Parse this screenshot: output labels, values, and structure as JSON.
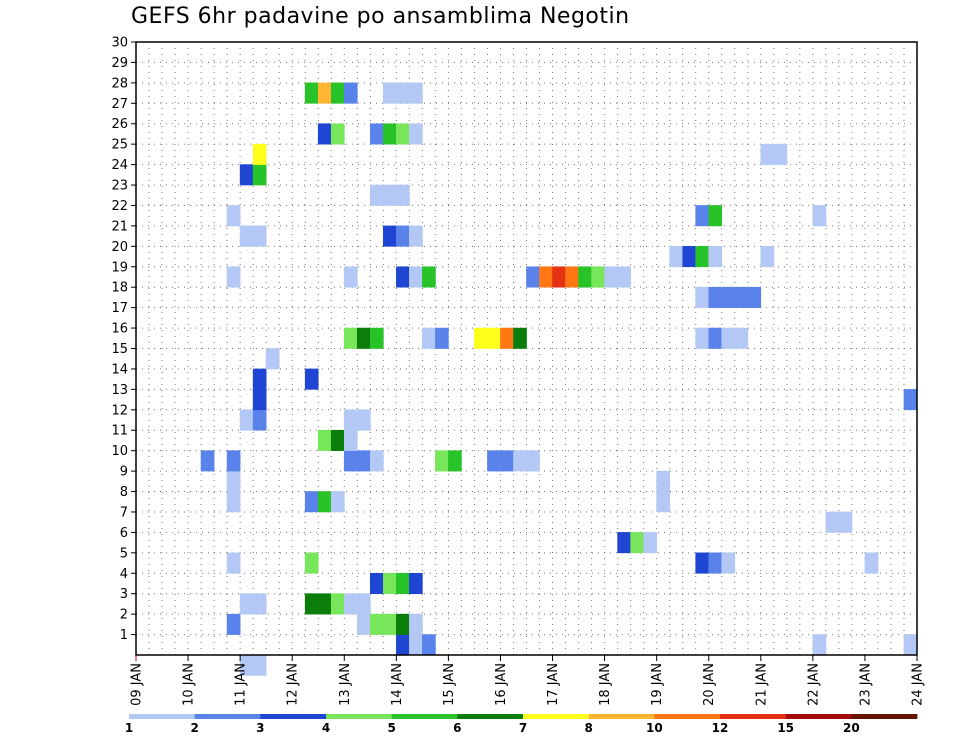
{
  "chart_data": {
    "type": "heatmap",
    "title": "GEFS 6hr padavine po ansamblima Negotin",
    "xlabel": "",
    "ylabel": "",
    "x_tick_labels": [
      "09 JAN",
      "10 JAN",
      "11 JAN",
      "12 JAN",
      "13 JAN",
      "14 JAN",
      "15 JAN",
      "16 JAN",
      "17 JAN",
      "18 JAN",
      "19 JAN",
      "20 JAN",
      "21 JAN",
      "22 JAN",
      "23 JAN",
      "24 JAN"
    ],
    "x_unit": "6-hour step from 09 JAN 00Z",
    "xlim": [
      0,
      60
    ],
    "y_tick_labels": [
      "1",
      "2",
      "3",
      "4",
      "5",
      "6",
      "7",
      "8",
      "9",
      "10",
      "11",
      "12",
      "13",
      "14",
      "15",
      "16",
      "17",
      "18",
      "19",
      "20",
      "21",
      "22",
      "23",
      "24",
      "25",
      "26",
      "27",
      "28",
      "29",
      "30"
    ],
    "ylim": [
      0,
      30
    ],
    "grid": true,
    "colorbar": {
      "levels": [
        "1",
        "2",
        "3",
        "4",
        "5",
        "6",
        "7",
        "8",
        "10",
        "12",
        "15",
        "20"
      ],
      "colors": [
        "#b4c8f5",
        "#5a82eb",
        "#1e46d2",
        "#78e65a",
        "#28c328",
        "#0a7d0a",
        "#ffff1e",
        "#ffb432",
        "#ff7814",
        "#e63214",
        "#a50a0a",
        "#641400"
      ]
    },
    "cells": [
      {
        "t": 8,
        "m": 0,
        "c": 0
      },
      {
        "t": 9,
        "m": 0,
        "c": 0
      },
      {
        "t": 20,
        "m": 1,
        "c": 2
      },
      {
        "t": 21,
        "m": 1,
        "c": 0
      },
      {
        "t": 22,
        "m": 1,
        "c": 1
      },
      {
        "t": 52,
        "m": 1,
        "c": 0
      },
      {
        "t": 59,
        "m": 1,
        "c": 0
      },
      {
        "t": 7,
        "m": 2,
        "c": 1
      },
      {
        "t": 17,
        "m": 2,
        "c": 0
      },
      {
        "t": 18,
        "m": 2,
        "c": 3
      },
      {
        "t": 19,
        "m": 2,
        "c": 3
      },
      {
        "t": 20,
        "m": 2,
        "c": 5
      },
      {
        "t": 21,
        "m": 2,
        "c": 0
      },
      {
        "t": 8,
        "m": 3,
        "c": 0
      },
      {
        "t": 9,
        "m": 3,
        "c": 0
      },
      {
        "t": 13,
        "m": 3,
        "c": 5
      },
      {
        "t": 14,
        "m": 3,
        "c": 5
      },
      {
        "t": 15,
        "m": 3,
        "c": 3
      },
      {
        "t": 16,
        "m": 3,
        "c": 0
      },
      {
        "t": 17,
        "m": 3,
        "c": 0
      },
      {
        "t": 18,
        "m": 4,
        "c": 2
      },
      {
        "t": 19,
        "m": 4,
        "c": 3
      },
      {
        "t": 20,
        "m": 4,
        "c": 4
      },
      {
        "t": 21,
        "m": 4,
        "c": 2
      },
      {
        "t": 7,
        "m": 5,
        "c": 0
      },
      {
        "t": 13,
        "m": 5,
        "c": 3
      },
      {
        "t": 43,
        "m": 5,
        "c": 2
      },
      {
        "t": 44,
        "m": 5,
        "c": 1
      },
      {
        "t": 45,
        "m": 5,
        "c": 0
      },
      {
        "t": 56,
        "m": 5,
        "c": 0
      },
      {
        "t": 37,
        "m": 6,
        "c": 2
      },
      {
        "t": 38,
        "m": 6,
        "c": 3
      },
      {
        "t": 39,
        "m": 6,
        "c": 0
      },
      {
        "t": 53,
        "m": 7,
        "c": 0
      },
      {
        "t": 54,
        "m": 7,
        "c": 0
      },
      {
        "t": 7,
        "m": 8,
        "c": 0
      },
      {
        "t": 13,
        "m": 8,
        "c": 1
      },
      {
        "t": 14,
        "m": 8,
        "c": 4
      },
      {
        "t": 15,
        "m": 8,
        "c": 0
      },
      {
        "t": 40,
        "m": 8,
        "c": 0
      },
      {
        "t": 7,
        "m": 9,
        "c": 0
      },
      {
        "t": 40,
        "m": 9,
        "c": 0
      },
      {
        "t": 5,
        "m": 10,
        "c": 1
      },
      {
        "t": 7,
        "m": 10,
        "c": 1
      },
      {
        "t": 16,
        "m": 10,
        "c": 1
      },
      {
        "t": 17,
        "m": 10,
        "c": 1
      },
      {
        "t": 18,
        "m": 10,
        "c": 0
      },
      {
        "t": 23,
        "m": 10,
        "c": 3
      },
      {
        "t": 24,
        "m": 10,
        "c": 4
      },
      {
        "t": 27,
        "m": 10,
        "c": 1
      },
      {
        "t": 28,
        "m": 10,
        "c": 1
      },
      {
        "t": 29,
        "m": 10,
        "c": 0
      },
      {
        "t": 30,
        "m": 10,
        "c": 0
      },
      {
        "t": 14,
        "m": 11,
        "c": 3
      },
      {
        "t": 15,
        "m": 11,
        "c": 5
      },
      {
        "t": 16,
        "m": 11,
        "c": 0
      },
      {
        "t": 8,
        "m": 12,
        "c": 0
      },
      {
        "t": 9,
        "m": 12,
        "c": 1
      },
      {
        "t": 16,
        "m": 12,
        "c": 0
      },
      {
        "t": 17,
        "m": 12,
        "c": 0
      },
      {
        "t": 9,
        "m": 13,
        "c": 2
      },
      {
        "t": 59,
        "m": 13,
        "c": 1
      },
      {
        "t": 9,
        "m": 14,
        "c": 2
      },
      {
        "t": 13,
        "m": 14,
        "c": 2
      },
      {
        "t": 10,
        "m": 15,
        "c": 0
      },
      {
        "t": 16,
        "m": 16,
        "c": 3
      },
      {
        "t": 17,
        "m": 16,
        "c": 5
      },
      {
        "t": 18,
        "m": 16,
        "c": 4
      },
      {
        "t": 22,
        "m": 16,
        "c": 0
      },
      {
        "t": 23,
        "m": 16,
        "c": 1
      },
      {
        "t": 26,
        "m": 16,
        "c": 6
      },
      {
        "t": 27,
        "m": 16,
        "c": 6
      },
      {
        "t": 28,
        "m": 16,
        "c": 8
      },
      {
        "t": 29,
        "m": 16,
        "c": 5
      },
      {
        "t": 43,
        "m": 16,
        "c": 0
      },
      {
        "t": 44,
        "m": 16,
        "c": 1
      },
      {
        "t": 45,
        "m": 16,
        "c": 0
      },
      {
        "t": 46,
        "m": 16,
        "c": 0
      },
      {
        "t": 43,
        "m": 18,
        "c": 0
      },
      {
        "t": 44,
        "m": 18,
        "c": 1
      },
      {
        "t": 45,
        "m": 18,
        "c": 1
      },
      {
        "t": 46,
        "m": 18,
        "c": 1
      },
      {
        "t": 47,
        "m": 18,
        "c": 1
      },
      {
        "t": 7,
        "m": 19,
        "c": 0
      },
      {
        "t": 16,
        "m": 19,
        "c": 0
      },
      {
        "t": 20,
        "m": 19,
        "c": 2
      },
      {
        "t": 21,
        "m": 19,
        "c": 0
      },
      {
        "t": 22,
        "m": 19,
        "c": 4
      },
      {
        "t": 30,
        "m": 19,
        "c": 1
      },
      {
        "t": 31,
        "m": 19,
        "c": 8
      },
      {
        "t": 32,
        "m": 19,
        "c": 9
      },
      {
        "t": 33,
        "m": 19,
        "c": 8
      },
      {
        "t": 34,
        "m": 19,
        "c": 4
      },
      {
        "t": 35,
        "m": 19,
        "c": 3
      },
      {
        "t": 36,
        "m": 19,
        "c": 0
      },
      {
        "t": 37,
        "m": 19,
        "c": 0
      },
      {
        "t": 41,
        "m": 20,
        "c": 0
      },
      {
        "t": 42,
        "m": 20,
        "c": 2
      },
      {
        "t": 43,
        "m": 20,
        "c": 4
      },
      {
        "t": 44,
        "m": 20,
        "c": 0
      },
      {
        "t": 48,
        "m": 20,
        "c": 0
      },
      {
        "t": 8,
        "m": 21,
        "c": 0
      },
      {
        "t": 9,
        "m": 21,
        "c": 0
      },
      {
        "t": 19,
        "m": 21,
        "c": 2
      },
      {
        "t": 20,
        "m": 21,
        "c": 1
      },
      {
        "t": 21,
        "m": 21,
        "c": 0
      },
      {
        "t": 7,
        "m": 22,
        "c": 0
      },
      {
        "t": 43,
        "m": 22,
        "c": 1
      },
      {
        "t": 44,
        "m": 22,
        "c": 4
      },
      {
        "t": 52,
        "m": 22,
        "c": 0
      },
      {
        "t": 18,
        "m": 23,
        "c": 0
      },
      {
        "t": 19,
        "m": 23,
        "c": 0
      },
      {
        "t": 20,
        "m": 23,
        "c": 0
      },
      {
        "t": 8,
        "m": 24,
        "c": 2
      },
      {
        "t": 9,
        "m": 24,
        "c": 4
      },
      {
        "t": 9,
        "m": 25,
        "c": 6
      },
      {
        "t": 48,
        "m": 25,
        "c": 0
      },
      {
        "t": 49,
        "m": 25,
        "c": 0
      },
      {
        "t": 14,
        "m": 26,
        "c": 2
      },
      {
        "t": 15,
        "m": 26,
        "c": 3
      },
      {
        "t": 18,
        "m": 26,
        "c": 1
      },
      {
        "t": 19,
        "m": 26,
        "c": 4
      },
      {
        "t": 20,
        "m": 26,
        "c": 3
      },
      {
        "t": 21,
        "m": 26,
        "c": 0
      },
      {
        "t": 13,
        "m": 28,
        "c": 4
      },
      {
        "t": 14,
        "m": 28,
        "c": 7
      },
      {
        "t": 15,
        "m": 28,
        "c": 4
      },
      {
        "t": 16,
        "m": 28,
        "c": 1
      },
      {
        "t": 19,
        "m": 28,
        "c": 0
      },
      {
        "t": 20,
        "m": 28,
        "c": 0
      },
      {
        "t": 21,
        "m": 28,
        "c": 0
      }
    ]
  }
}
